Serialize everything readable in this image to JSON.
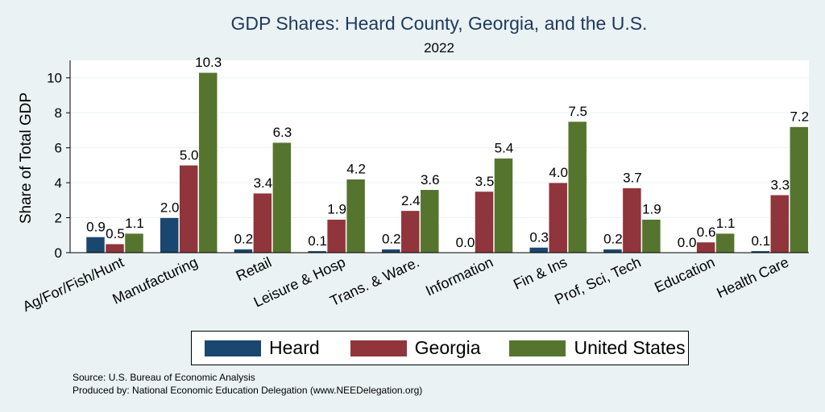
{
  "chart_data": {
    "type": "bar",
    "title": "GDP Shares: Heard County, Georgia, and the U.S.",
    "subtitle": "2022",
    "ylabel": "Share of Total GDP",
    "xlabel": "",
    "ylim": [
      0,
      11
    ],
    "yticks": [
      0,
      2,
      4,
      6,
      8,
      10
    ],
    "grid": true,
    "legend_position": "bottom",
    "categories": [
      "Ag/For/Fish/Hunt",
      "Manufacturing",
      "Retail",
      "Leisure & Hosp",
      "Trans. & Ware.",
      "Information",
      "Fin & Ins",
      "Prof, Sci, Tech",
      "Education",
      "Health Care"
    ],
    "series": [
      {
        "name": "Heard",
        "color": "#1a476f",
        "values": [
          0.9,
          2.0,
          0.2,
          0.1,
          0.2,
          0.0,
          0.3,
          0.2,
          0.0,
          0.1
        ]
      },
      {
        "name": "Georgia",
        "color": "#90353b",
        "values": [
          0.5,
          5.0,
          3.4,
          1.9,
          2.4,
          3.5,
          4.0,
          3.7,
          0.6,
          3.3
        ]
      },
      {
        "name": "United States",
        "color": "#55752f",
        "values": [
          1.1,
          10.3,
          6.3,
          4.2,
          3.6,
          5.4,
          7.5,
          1.9,
          1.1,
          7.2
        ]
      }
    ]
  },
  "source_lines": [
    "Source: U.S. Bureau of Economic Analysis",
    "Produced by: National Economic Education Delegation (www.NEEDelegation.org)"
  ]
}
